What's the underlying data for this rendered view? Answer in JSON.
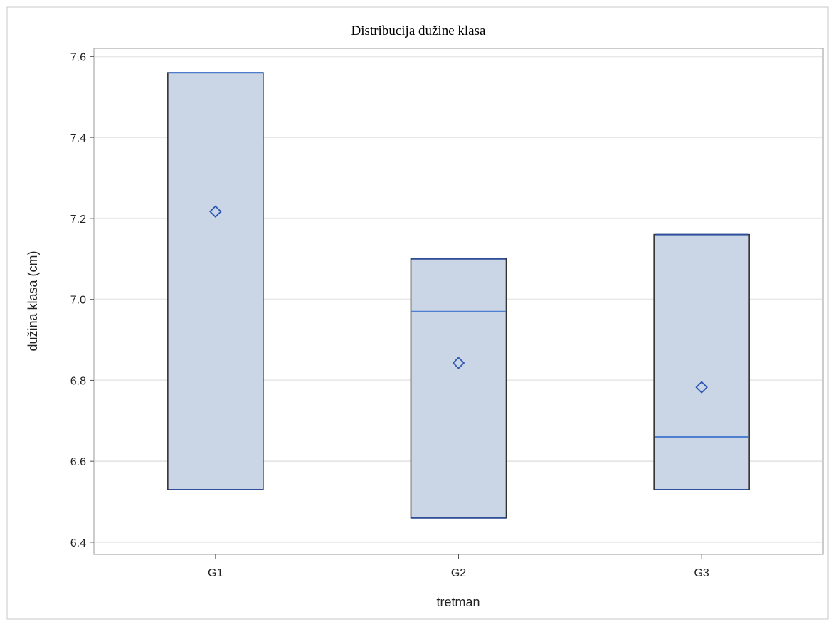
{
  "chart_data": {
    "type": "box",
    "title": "Distribucija dužine  klasa",
    "xlabel": "tretman",
    "ylabel": "dužina klasa (cm)",
    "categories": [
      "G1",
      "G2",
      "G3"
    ],
    "ylim": [
      6.37,
      7.62
    ],
    "yticks": [
      "6.4",
      "6.6",
      "6.8",
      "7.0",
      "7.2",
      "7.4",
      "7.6"
    ],
    "grid": true,
    "boxes": [
      {
        "name": "G1",
        "q1": 6.53,
        "median": 7.56,
        "q3": 7.56,
        "mean": 7.217
      },
      {
        "name": "G2",
        "q1": 6.46,
        "median": 6.97,
        "q3": 7.1,
        "mean": 6.843
      },
      {
        "name": "G3",
        "q1": 6.53,
        "median": 6.66,
        "q3": 7.16,
        "mean": 6.783
      }
    ],
    "colors": {
      "box_fill": "#cad5e6",
      "box_stroke": "#333333",
      "median": "#4e7fd0",
      "whisker_cap": "#2f4f9a",
      "mean_marker": "#2e56b3",
      "grid": "#e8e8e8",
      "frame": "#9a9a9a"
    }
  }
}
